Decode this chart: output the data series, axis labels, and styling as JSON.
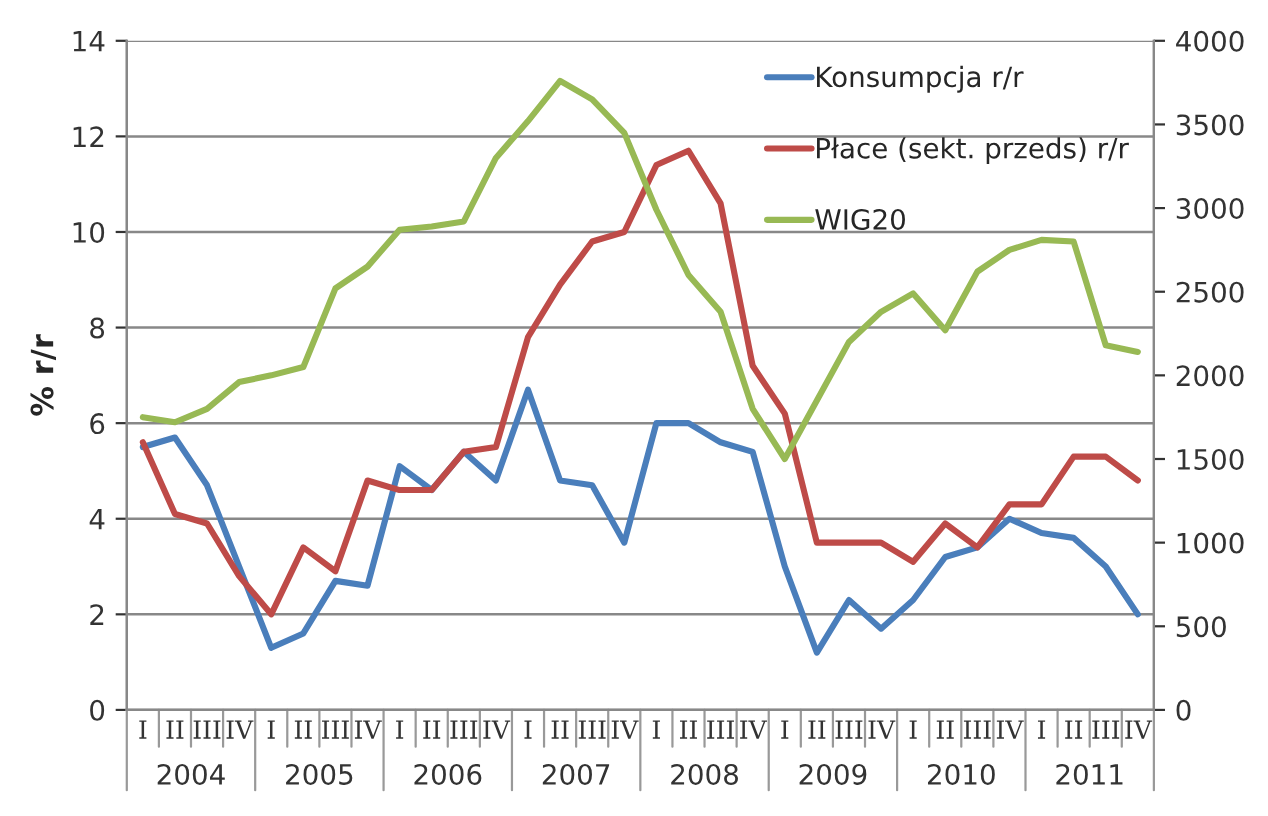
{
  "chart_data": {
    "type": "line",
    "ylabel": "% r/r",
    "categories": [
      "I",
      "II",
      "III",
      "IV",
      "I",
      "II",
      "III",
      "IV",
      "I",
      "II",
      "III",
      "IV",
      "I",
      "II",
      "III",
      "IV",
      "I",
      "II",
      "III",
      "IV",
      "I",
      "II",
      "III",
      "IV",
      "I",
      "II",
      "III",
      "IV",
      "I",
      "II",
      "III",
      "IV"
    ],
    "annotations": [
      "2004",
      "2005",
      "2006",
      "2007",
      "2008",
      "2009",
      "2010",
      "2011"
    ],
    "series": [
      {
        "name": "Konsumpcja r/r",
        "color": "#4a7ebb",
        "values": [
          5.5,
          5.7,
          4.7,
          3.0,
          1.3,
          1.6,
          2.7,
          2.6,
          5.1,
          4.6,
          5.4,
          4.8,
          6.7,
          4.8,
          4.7,
          3.5,
          6.0,
          6.0,
          5.6,
          5.4,
          3.0,
          1.2,
          2.3,
          1.7,
          2.3,
          3.2,
          3.4,
          4.0,
          3.7,
          3.6,
          3.0,
          2.0
        ]
      },
      {
        "name": "Płace (sekt. przeds) r/r",
        "color": "#be4b48",
        "values": [
          5.6,
          4.1,
          3.9,
          2.8,
          2.0,
          3.4,
          2.9,
          4.8,
          4.6,
          4.6,
          5.4,
          5.5,
          7.8,
          8.9,
          9.8,
          10.0,
          11.4,
          11.7,
          10.6,
          7.2,
          6.2,
          3.5,
          3.5,
          3.5,
          3.1,
          3.9,
          3.4,
          4.3,
          4.3,
          5.3,
          5.3,
          4.8
        ]
      },
      {
        "name": "WIG20",
        "color": "#98b954",
        "axis": "y2",
        "values": [
          1750,
          1720,
          1800,
          1960,
          2000,
          2050,
          2520,
          2650,
          2870,
          2890,
          2920,
          3300,
          3520,
          3760,
          3650,
          3450,
          2990,
          2600,
          2380,
          1800,
          1500,
          1850,
          2200,
          2380,
          2490,
          2270,
          2620,
          2750,
          2810,
          2800,
          2180,
          2140
        ]
      }
    ],
    "ylim": [
      0,
      14
    ],
    "yticks": [
      0,
      2,
      4,
      6,
      8,
      10,
      12,
      14
    ],
    "y2lim": [
      0,
      4000
    ],
    "y2ticks": [
      0,
      500,
      1000,
      1500,
      2000,
      2500,
      3000,
      3500,
      4000
    ],
    "grid": "y",
    "legend": "top right",
    "marker": "none",
    "line_style": "solid"
  }
}
